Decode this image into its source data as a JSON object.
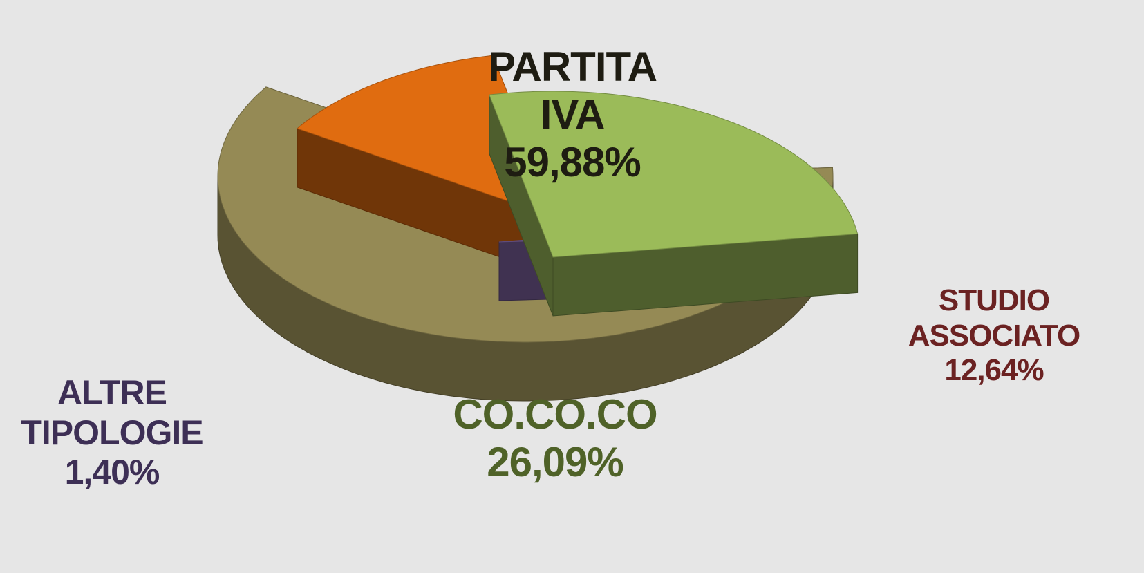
{
  "chart_data": {
    "type": "pie",
    "categories": [
      "PARTITA IVA",
      "STUDIO ASSOCIATO",
      "CO.CO.CO",
      "ALTRE TIPOLOGIE"
    ],
    "values": [
      59.88,
      12.64,
      26.09,
      1.4
    ],
    "value_labels": [
      "59,88%",
      "12,64%",
      "26,09%",
      "1,40%"
    ],
    "colors": [
      "#958a55",
      "#e06c10",
      "#9bbb59",
      "#8064a2"
    ],
    "label_colors": [
      "#1e1c12",
      "#6b2222",
      "#4f6228",
      "#3d2f55"
    ]
  }
}
